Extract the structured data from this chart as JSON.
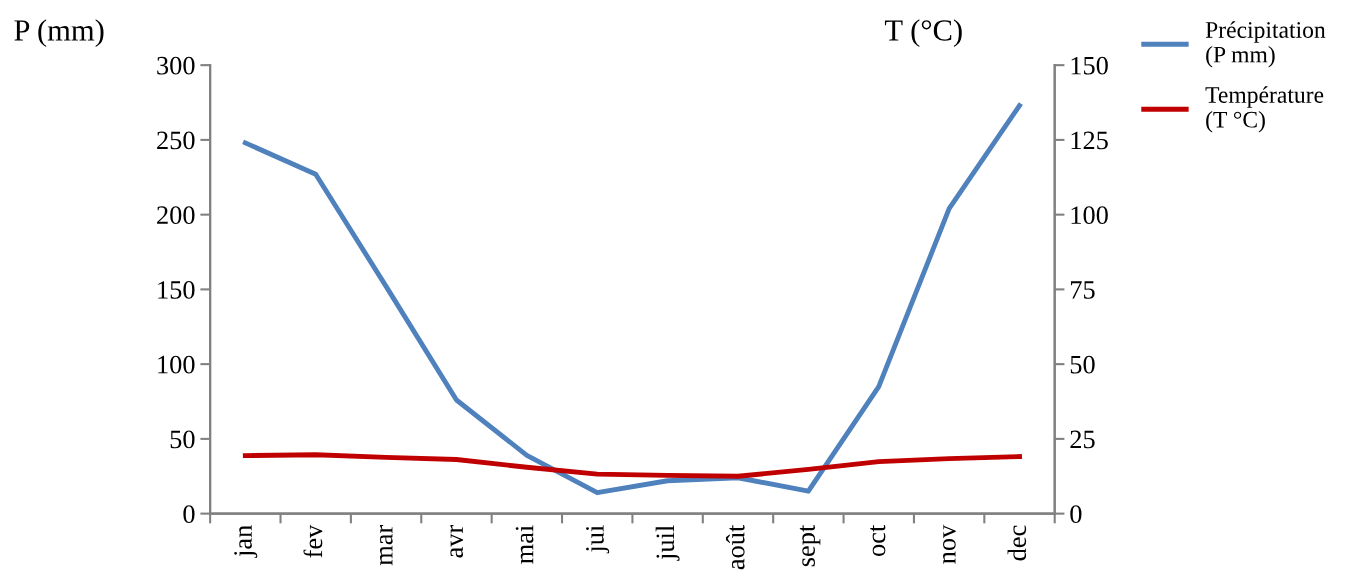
{
  "chart_data": {
    "type": "line",
    "ylabel": "P (mm)",
    "y2label": "T (°C)",
    "categories": [
      "jan",
      "fev",
      "mar",
      "avr",
      "mai",
      "jui",
      "juil",
      "août",
      "sept",
      "oct",
      "nov",
      "dec"
    ],
    "series": [
      {
        "name": "Précipitation\n(P mm)",
        "color": "#4f81bd",
        "values": [
          248,
          227,
          152,
          76,
          39,
          14,
          22,
          24,
          15,
          85,
          204,
          273
        ]
      },
      {
        "name": "Température\n(T °C)",
        "color": "#c00000",
        "axis": "y2",
        "values": [
          19.4,
          19.7,
          18.8,
          18.1,
          15.5,
          13.2,
          12.8,
          12.5,
          14.8,
          17.4,
          18.4,
          19.1
        ]
      }
    ],
    "ylim": [
      0,
      300
    ],
    "yticks": [
      0,
      50,
      100,
      150,
      200,
      250,
      300
    ],
    "y2lim": [
      0,
      150
    ],
    "y2ticks": [
      0,
      25,
      50,
      75,
      100,
      125,
      150
    ],
    "grid": false,
    "legend": "top right",
    "marker": "none",
    "line_style": "solid"
  }
}
